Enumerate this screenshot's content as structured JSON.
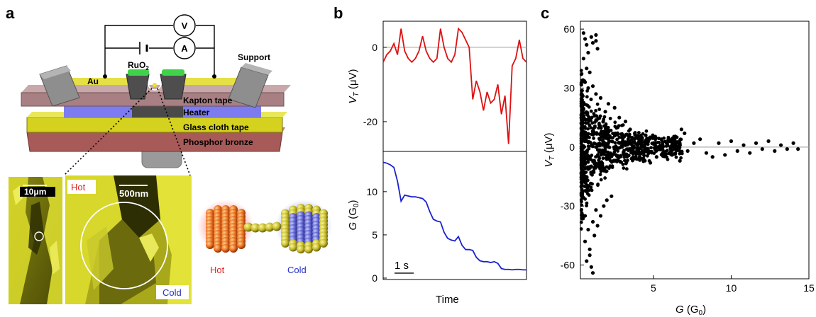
{
  "panels": {
    "a": {
      "letter": "a",
      "meters": {
        "voltmeter": "V",
        "ammeter": "A"
      },
      "labels": {
        "support": "Support",
        "ruo2": "RuO",
        "ruo2_sub": "2",
        "au": "Au",
        "kapton": "Kapton tape",
        "heater": "Heater",
        "glass": "Glass cloth tape",
        "phosphor": "Phosphor bronze"
      },
      "micrographs": {
        "scale_left": "10μm",
        "scale_center": "500nm",
        "hot_box": "Hot",
        "cold_box": "Cold"
      },
      "model": {
        "hot": "Hot",
        "cold": "Cold"
      }
    },
    "b": {
      "letter": "b",
      "top_ylabel_main": "V",
      "top_ylabel_sub": "T",
      "top_ylabel_unit": " (μV)",
      "bottom_ylabel_main": "G",
      "bottom_ylabel_unit_open": " (G",
      "bottom_ylabel_unit_sub": "0",
      "bottom_ylabel_unit_close": ")",
      "xlabel": "Time",
      "scalebar": "1 s"
    },
    "c": {
      "letter": "c",
      "ylabel_main": "V",
      "ylabel_sub": "T",
      "ylabel_unit": " (μV)",
      "xlabel_main": "G",
      "xlabel_unit_open": " (G",
      "xlabel_unit_sub": "0",
      "xlabel_unit_close": ")"
    }
  },
  "chart_data": [
    {
      "type": "line",
      "panel": "b-top",
      "ylabel": "VT (μV)",
      "ylim": [
        -28,
        7
      ],
      "yticks": [
        0,
        -20
      ],
      "reference_line": 0,
      "color": "#dd1111",
      "series": [
        {
          "x": [
            0,
            1,
            2,
            3,
            4,
            5,
            6,
            7,
            8,
            9,
            10,
            11,
            12,
            13,
            14,
            15,
            16,
            17,
            18,
            19,
            20,
            21,
            22,
            23,
            24,
            25,
            26,
            27,
            28,
            29,
            30,
            31,
            32,
            33,
            34,
            35,
            36,
            37,
            38,
            39,
            40
          ],
          "values": [
            -4,
            -2,
            -1,
            1,
            -2,
            5,
            -1,
            -3,
            -4,
            -3,
            -1,
            3,
            -1,
            -3,
            -4,
            -3,
            5,
            0,
            -3,
            -4,
            -2,
            5,
            4,
            2,
            0,
            -14,
            -9,
            -12,
            -17,
            -12,
            -15,
            -14,
            -10,
            -18,
            -13,
            -26,
            -5,
            -3,
            2,
            -3,
            -4
          ]
        }
      ]
    },
    {
      "type": "line",
      "panel": "b-bottom",
      "ylabel": "G (G0)",
      "xlabel": "Time",
      "ylim": [
        0,
        14
      ],
      "yticks": [
        0,
        5,
        10
      ],
      "color": "#1a22cc",
      "series": [
        {
          "x": [
            0,
            1,
            2,
            3,
            4,
            5,
            6,
            7,
            8,
            9,
            10,
            11,
            12,
            13,
            14,
            15,
            16,
            17,
            18,
            19,
            20,
            21,
            22,
            23,
            24,
            25,
            26,
            27,
            28,
            29,
            30,
            31,
            32,
            33,
            34,
            35,
            36,
            37,
            38,
            39,
            40
          ],
          "values": [
            13.4,
            13.3,
            13.1,
            12.8,
            11.2,
            8.9,
            9.6,
            9.5,
            9.4,
            9.4,
            9.3,
            9.2,
            8.8,
            7.7,
            6.8,
            6.6,
            6.5,
            5.3,
            4.6,
            4.4,
            4.3,
            4.8,
            3.8,
            3.3,
            3.3,
            3.2,
            2.4,
            2.0,
            1.9,
            1.9,
            1.8,
            1.9,
            1.7,
            1.1,
            1.0,
            1.0,
            0.95,
            1.0,
            1.0,
            0.95,
            0.95
          ]
        }
      ]
    },
    {
      "type": "scatter",
      "panel": "c",
      "xlabel": "G (G0)",
      "ylabel": "VT (μV)",
      "xlim": [
        0.3,
        15
      ],
      "ylim": [
        -67,
        64
      ],
      "xticks": [
        5,
        10,
        15
      ],
      "yticks": [
        60,
        30,
        0,
        -30,
        -60
      ],
      "reference_line": 0,
      "color": "#000000",
      "series": [
        {
          "points": [
            [
              0.5,
              58
            ],
            [
              0.6,
              55
            ],
            [
              0.7,
              52
            ],
            [
              0.8,
              48
            ],
            [
              1.0,
              56
            ],
            [
              1.1,
              53
            ],
            [
              1.3,
              57
            ],
            [
              1.3,
              54
            ],
            [
              1.4,
              50
            ],
            [
              0.5,
              45
            ],
            [
              0.7,
              40
            ],
            [
              0.9,
              38
            ],
            [
              0.6,
              33
            ],
            [
              0.8,
              30
            ],
            [
              1.1,
              31
            ],
            [
              1.3,
              27
            ],
            [
              1.6,
              25
            ],
            [
              0.6,
              -35
            ],
            [
              0.8,
              -42
            ],
            [
              0.6,
              -48
            ],
            [
              0.9,
              -52
            ],
            [
              0.7,
              -58
            ],
            [
              1.0,
              -61
            ],
            [
              1.1,
              -64
            ],
            [
              0.9,
              -55
            ],
            [
              1.2,
              -45
            ],
            [
              1.4,
              -40
            ],
            [
              1.1,
              -38
            ],
            [
              1.6,
              -35
            ],
            [
              1.3,
              -32
            ],
            [
              1.8,
              -30
            ],
            [
              2.0,
              -27
            ],
            [
              2.3,
              -25
            ],
            [
              2.1,
              22
            ],
            [
              2.5,
              20
            ],
            [
              1.9,
              18
            ],
            [
              2.8,
              15
            ],
            [
              3.2,
              13
            ],
            [
              2.7,
              10
            ],
            [
              3.5,
              9
            ],
            [
              3.0,
              6
            ],
            [
              3.8,
              7
            ],
            [
              4.2,
              4
            ],
            [
              4.5,
              6
            ],
            [
              3.9,
              -3
            ],
            [
              4.3,
              -6
            ],
            [
              4.8,
              -8
            ],
            [
              5.2,
              -5
            ],
            [
              5.6,
              -3
            ],
            [
              5.0,
              2
            ],
            [
              5.5,
              4
            ],
            [
              6.0,
              3
            ],
            [
              6.5,
              5
            ],
            [
              6.8,
              9
            ],
            [
              7.0,
              7
            ],
            [
              6.2,
              -4
            ],
            [
              6.7,
              -7
            ],
            [
              7.2,
              -2
            ],
            [
              7.6,
              2
            ],
            [
              8.0,
              4
            ],
            [
              8.4,
              -3
            ],
            [
              8.8,
              -5
            ],
            [
              9.2,
              2
            ],
            [
              9.6,
              -4
            ],
            [
              10.0,
              3
            ],
            [
              10.4,
              -2
            ],
            [
              10.8,
              1
            ],
            [
              11.2,
              -3
            ],
            [
              11.6,
              2
            ],
            [
              12.0,
              -1
            ],
            [
              12.4,
              3
            ],
            [
              12.8,
              -2
            ],
            [
              13.2,
              1
            ],
            [
              13.6,
              -1
            ],
            [
              14.0,
              2
            ],
            [
              14.3,
              -1
            ]
          ]
        }
      ]
    }
  ]
}
